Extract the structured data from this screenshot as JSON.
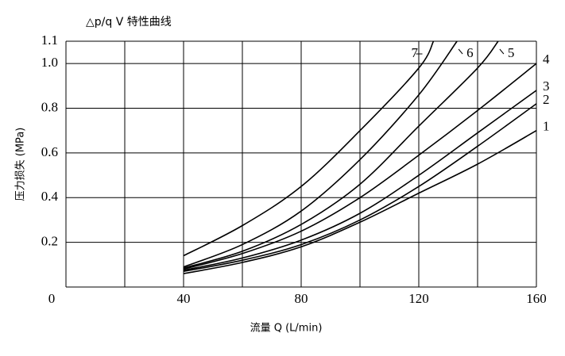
{
  "chart_data": {
    "type": "line",
    "title": "△p/q V 特性曲线",
    "y_label": "压力损失 (MPa)",
    "x_label": "流量 Q (L/min)",
    "xlim": [
      0,
      160
    ],
    "ylim": [
      0,
      1.1
    ],
    "xticks": [
      0,
      40,
      80,
      120,
      160
    ],
    "x_gridlines": [
      20,
      40,
      60,
      80,
      100,
      120,
      140,
      160
    ],
    "yticks": [
      0.2,
      0.4,
      0.6,
      0.8,
      {
        "value": 1,
        "label": "1.0"
      },
      1.1
    ],
    "grid": true,
    "color": "#000000",
    "series": [
      {
        "name": "1",
        "x": [
          40,
          60,
          80,
          100,
          120,
          140,
          160
        ],
        "values": [
          0.06,
          0.11,
          0.18,
          0.29,
          0.42,
          0.55,
          0.7
        ]
      },
      {
        "name": "2",
        "x": [
          40,
          60,
          80,
          100,
          120,
          140,
          160
        ],
        "values": [
          0.07,
          0.12,
          0.19,
          0.3,
          0.45,
          0.63,
          0.82
        ]
      },
      {
        "name": "3",
        "x": [
          40,
          60,
          80,
          100,
          120,
          140,
          160
        ],
        "values": [
          0.075,
          0.13,
          0.21,
          0.33,
          0.5,
          0.69,
          0.88
        ]
      },
      {
        "name": "4",
        "x": [
          40,
          60,
          80,
          100,
          120,
          140,
          160
        ],
        "values": [
          0.08,
          0.15,
          0.25,
          0.4,
          0.59,
          0.79,
          1.0
        ]
      },
      {
        "name": "5",
        "x": [
          40,
          60,
          80,
          100,
          120,
          140,
          147
        ],
        "values": [
          0.085,
          0.16,
          0.28,
          0.46,
          0.72,
          0.98,
          1.1
        ]
      },
      {
        "name": "6",
        "x": [
          40,
          60,
          80,
          100,
          120,
          133
        ],
        "values": [
          0.09,
          0.19,
          0.34,
          0.57,
          0.86,
          1.1
        ]
      },
      {
        "name": "7",
        "x": [
          40,
          60,
          80,
          100,
          120,
          125
        ],
        "values": [
          0.14,
          0.275,
          0.45,
          0.7,
          0.98,
          1.1
        ]
      }
    ]
  }
}
